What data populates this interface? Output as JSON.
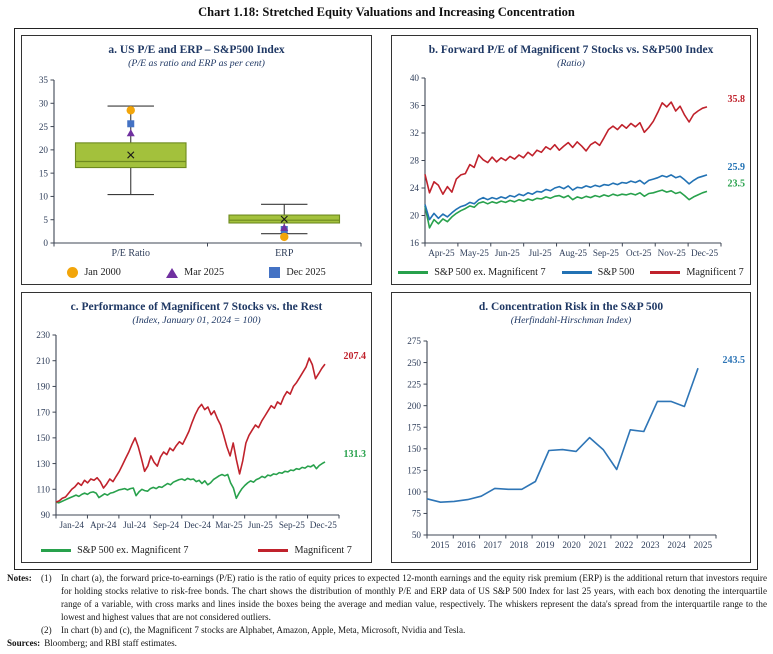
{
  "title": "Chart 1.18: Stretched Equity Valuations and Increasing Concentration",
  "chart_data": [
    {
      "id": "a",
      "type": "box",
      "title": "a. US P/E and ERP – S&P500 Index",
      "subtitle": "(P/E as ratio and ERP as per cent)",
      "ylim": [
        0,
        35
      ],
      "yticks": [
        0,
        5,
        10,
        15,
        20,
        25,
        30,
        35
      ],
      "box_fill": "#a3c13c",
      "box_stroke": "#6e8a1f",
      "categories": [
        "P/E Ratio",
        "ERP"
      ],
      "boxes": [
        {
          "category": "P/E Ratio",
          "q1": 16.2,
          "median": 17.5,
          "mean": 18.9,
          "q3": 21.5,
          "whisker_low": 10.4,
          "whisker_high": 29.4,
          "markers": [
            {
              "name": "Jan 2000",
              "shape": "circle",
              "color": "#f2a50a",
              "value": 28.5
            },
            {
              "name": "Dec 2025",
              "shape": "square",
              "color": "#4472c4",
              "value": 25.6
            },
            {
              "name": "Mar 2025",
              "shape": "triangle",
              "color": "#7030a0",
              "value": 23.6
            }
          ]
        },
        {
          "category": "ERP",
          "q1": 4.3,
          "median": 4.9,
          "mean": 5.1,
          "q3": 6.0,
          "whisker_low": 2.0,
          "whisker_high": 8.3,
          "markers": [
            {
              "name": "Dec 2025",
              "shape": "square",
              "color": "#4472c4",
              "value": 2.9
            },
            {
              "name": "Mar 2025",
              "shape": "triangle",
              "color": "#7030a0",
              "value": 3.3
            },
            {
              "name": "Jan 2000",
              "shape": "circle",
              "color": "#f2a50a",
              "value": 1.3
            }
          ]
        }
      ],
      "legend": [
        {
          "label": "Jan 2000",
          "shape": "circle",
          "color": "#f2a50a"
        },
        {
          "label": "Mar 2025",
          "shape": "triangle",
          "color": "#7030a0"
        },
        {
          "label": "Dec 2025",
          "shape": "square",
          "color": "#4472c4"
        }
      ]
    },
    {
      "id": "b",
      "type": "line",
      "title": "b. Forward P/E of Magnificent 7 Stocks vs. S&P500 Index",
      "subtitle": "(Ratio)",
      "ylim": [
        16,
        40
      ],
      "yticks": [
        16,
        20,
        24,
        28,
        32,
        36,
        40
      ],
      "xlabels": [
        "Apr-25",
        "May-25",
        "Jun-25",
        "Jul-25",
        "Aug-25",
        "Sep-25",
        "Oct-25",
        "Nov-25",
        "Dec-25"
      ],
      "series": [
        {
          "name": "S&P 500 ex. Magnificent 7",
          "color": "#28a14c",
          "end_label": "23.5",
          "values": [
            21.4,
            18.2,
            19.4,
            18.8,
            19.5,
            19.1,
            19.8,
            20.3,
            20.7,
            21.0,
            21.4,
            21.2,
            21.8,
            22.0,
            21.7,
            22.0,
            21.8,
            22.1,
            21.9,
            22.2,
            22.0,
            22.3,
            22.1,
            22.4,
            22.2,
            22.5,
            22.4,
            22.7,
            22.5,
            22.8,
            22.9,
            22.6,
            22.9,
            22.3,
            22.7,
            22.5,
            22.8,
            22.6,
            22.9,
            22.7,
            23.0,
            22.8,
            23.1,
            22.9,
            23.1,
            23.0,
            23.2,
            23.0,
            23.3,
            22.8,
            23.2,
            23.3,
            23.5,
            23.7,
            23.4,
            23.6,
            23.2,
            23.4,
            22.9,
            22.3,
            22.7,
            23.0,
            23.3,
            23.5
          ]
        },
        {
          "name": "S&P 500",
          "color": "#2272b4",
          "end_label": "25.9",
          "values": [
            21.6,
            19.4,
            20.3,
            19.6,
            20.2,
            19.8,
            20.4,
            20.9,
            21.3,
            21.5,
            21.9,
            21.7,
            22.3,
            22.6,
            22.3,
            22.6,
            22.4,
            22.7,
            22.5,
            22.9,
            22.7,
            23.1,
            22.9,
            23.3,
            23.1,
            23.5,
            23.4,
            23.8,
            23.6,
            24.0,
            24.2,
            23.9,
            24.3,
            23.7,
            24.1,
            24.0,
            24.3,
            24.1,
            24.4,
            24.2,
            24.5,
            24.4,
            24.7,
            24.5,
            24.8,
            24.7,
            25.0,
            24.8,
            25.1,
            24.6,
            25.1,
            25.3,
            25.5,
            25.8,
            25.6,
            25.9,
            25.5,
            25.7,
            25.2,
            24.6,
            25.1,
            25.5,
            25.7,
            25.9
          ]
        },
        {
          "name": "Magnificent 7",
          "color": "#c0222c",
          "end_label": "35.8",
          "values": [
            26.0,
            23.3,
            24.9,
            24.4,
            23.1,
            24.2,
            23.4,
            25.3,
            25.9,
            26.1,
            27.4,
            27.0,
            28.8,
            28.1,
            27.7,
            28.5,
            27.8,
            28.4,
            28.0,
            28.6,
            28.2,
            28.8,
            28.4,
            29.2,
            28.7,
            29.5,
            29.2,
            30.0,
            29.6,
            30.3,
            29.5,
            30.1,
            30.6,
            29.9,
            30.7,
            30.1,
            29.4,
            30.3,
            30.7,
            30.2,
            31.3,
            32.5,
            33.0,
            32.5,
            33.2,
            32.7,
            33.4,
            32.9,
            33.5,
            32.1,
            32.8,
            33.7,
            35.0,
            36.4,
            35.8,
            36.5,
            35.2,
            35.9,
            34.6,
            33.6,
            34.7,
            35.2,
            35.6,
            35.8
          ]
        }
      ]
    },
    {
      "id": "c",
      "type": "line",
      "title": "c. Performance of Magnificent 7 Stocks vs. the Rest",
      "subtitle": "(Index, January 01, 2024 = 100)",
      "ylim": [
        90,
        230
      ],
      "yticks": [
        90,
        110,
        130,
        150,
        170,
        190,
        210,
        230
      ],
      "xlabels": [
        "Jan-24",
        "Apr-24",
        "Jul-24",
        "Sep-24",
        "Dec-24",
        "Mar-25",
        "Jun-25",
        "Sep-25",
        "Dec-25"
      ],
      "series": [
        {
          "name": "S&P 500 ex. Magnificent 7",
          "color": "#28a14c",
          "end_label": "131.3",
          "values": [
            100,
            99.5,
            100.5,
            101.5,
            102.5,
            103.5,
            104.5,
            105.5,
            104.5,
            106,
            107,
            106,
            107.5,
            108,
            107,
            103.5,
            105,
            106.5,
            105.5,
            107,
            107.5,
            108.5,
            109.5,
            110,
            110.5,
            109.5,
            110.5,
            111,
            105,
            108,
            110,
            109,
            108.5,
            110.5,
            111.5,
            110.5,
            112,
            111.5,
            113,
            114.5,
            113.5,
            115.5,
            116.5,
            117.5,
            118,
            117,
            118.5,
            117.5,
            118,
            116,
            117,
            114.5,
            116.5,
            113.5,
            115,
            117.5,
            119,
            120.5,
            121.5,
            120.5,
            121.5,
            115,
            111,
            103,
            107,
            110.5,
            113,
            115,
            116.5,
            115.5,
            117.5,
            118.5,
            120,
            119,
            121,
            120.5,
            122,
            121.5,
            123,
            122.5,
            124,
            123.5,
            125,
            124.5,
            126,
            125.5,
            127,
            126.5,
            128,
            127.5,
            129,
            126,
            128.5,
            130,
            131.3
          ]
        },
        {
          "name": "Magnificent 7",
          "color": "#c0222c",
          "end_label": "207.4",
          "values": [
            100,
            101,
            103,
            104,
            107,
            110,
            112,
            115,
            113,
            117,
            115,
            118,
            117,
            119,
            116,
            111,
            114,
            118,
            116,
            120,
            124,
            129,
            134,
            139,
            145,
            150,
            143,
            134,
            124,
            128,
            136,
            131,
            128,
            135,
            139,
            137,
            142,
            140,
            144,
            147,
            145,
            150,
            155,
            162,
            168,
            173,
            176,
            172,
            174,
            168,
            171,
            165,
            160,
            152,
            143,
            136,
            146,
            133,
            122,
            132,
            146,
            152,
            156,
            160,
            158,
            163,
            167,
            171,
            175,
            173,
            178,
            176,
            182,
            186,
            184,
            190,
            193,
            197,
            201,
            205,
            212,
            207,
            196,
            200,
            204,
            207.4
          ]
        }
      ]
    },
    {
      "id": "d",
      "type": "line",
      "title": "d. Concentration Risk in the S&P 500",
      "subtitle": "(Herfindahl-Hirschman Index)",
      "ylim": [
        50,
        275
      ],
      "yticks": [
        50,
        75,
        100,
        125,
        150,
        175,
        200,
        225,
        250,
        275
      ],
      "xlabels": [
        "2015",
        "2016",
        "2017",
        "2018",
        "2019",
        "2020",
        "2021",
        "2022",
        "2023",
        "2024",
        "2025"
      ],
      "series": [
        {
          "name": "Herfindahl-Hirschman Index",
          "color": "#2e75b6",
          "end_label": "243.5",
          "values": [
            92,
            88,
            89,
            91,
            95,
            104,
            103,
            103,
            112,
            148,
            149,
            147,
            163,
            149,
            126,
            172,
            170,
            205,
            205,
            199,
            243.5
          ]
        }
      ]
    }
  ],
  "notes": {
    "label": "Notes:",
    "items": [
      {
        "num": "(1)",
        "text": "In chart (a), the forward price-to-earnings (P/E) ratio is the ratio of equity prices to expected 12-month earnings and the equity risk premium (ERP) is the additional return that investors require for holding stocks relative to risk-free bonds. The chart shows the distribution of monthly P/E and ERP data of US S&P 500 Index for last 25 years, with each box denoting the interquartile range of a variable, with cross marks and lines inside the boxes being the average and median value, respectively. The whiskers represent the data's spread from the interquartile range to the lowest and highest values that are not considered outliers."
      },
      {
        "num": "(2)",
        "text": "In chart (b) and (c), the Magnificent 7 stocks are Alphabet, Amazon, Apple, Meta, Microsoft, Nvidia and Tesla."
      }
    ]
  },
  "sources": {
    "label": "Sources:",
    "text": "Bloomberg; and RBI staff estimates."
  }
}
